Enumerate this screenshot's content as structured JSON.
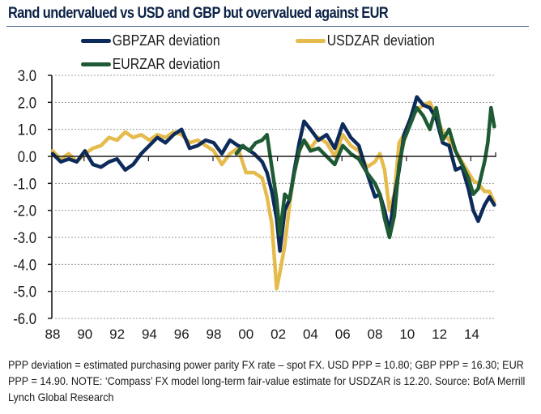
{
  "title": "Rand undervalued vs USD and GBP but overvalued against EUR",
  "footnote": "PPP deviation = estimated purchasing power parity FX rate – spot FX. USD PPP = 10.80; GBP PPP = 16.30; EUR PPP = 14.90. NOTE: ‘Compass’ FX model long-term fair-value estimate for USDZAR is 12.20. Source: BofA Merrill Lynch Global Research",
  "colors": {
    "gbp": "#0d2b5a",
    "usd": "#e6bb4d",
    "eur": "#1e5a34",
    "title": "#0b2246"
  },
  "chart_data": {
    "type": "line",
    "title": "Rand undervalued vs USD and GBP but overvalued against EUR",
    "xlabel": "",
    "ylabel": "",
    "ylim": [
      -6.0,
      3.0
    ],
    "xlim": [
      1988,
      2015.6
    ],
    "yticks": [
      "3.0",
      "2.0",
      "1.0",
      "0.0",
      "-1.0",
      "-2.0",
      "-3.0",
      "-4.0",
      "-5.0",
      "-6.0"
    ],
    "ytick_values": [
      3,
      2,
      1,
      0,
      -1,
      -2,
      -3,
      -4,
      -5,
      -6
    ],
    "xticks": [
      "88",
      "90",
      "92",
      "94",
      "96",
      "98",
      "00",
      "02",
      "04",
      "06",
      "08",
      "10",
      "12",
      "14"
    ],
    "xtick_values": [
      1988,
      1990,
      1992,
      1994,
      1996,
      1998,
      2000,
      2002,
      2004,
      2006,
      2008,
      2010,
      2012,
      2014
    ],
    "grid": true,
    "legend": "top",
    "series": [
      {
        "name": "GBPZAR deviation",
        "key": "gbp",
        "x": [
          1988,
          1988.5,
          1989,
          1989.5,
          1990,
          1990.5,
          1991,
          1991.5,
          1992,
          1992.5,
          1993,
          1993.5,
          1994,
          1994.5,
          1995,
          1995.5,
          1996,
          1996.5,
          1997,
          1997.5,
          1998,
          1998.5,
          1999,
          1999.5,
          2000,
          2000.5,
          2001,
          2001.3,
          2001.6,
          2001.9,
          2002.1,
          2002.4,
          2002.7,
          2003,
          2003.3,
          2003.6,
          2004,
          2004.5,
          2005,
          2005.5,
          2006,
          2006.5,
          2007,
          2007.5,
          2008,
          2008.3,
          2008.6,
          2008.9,
          2009.2,
          2009.5,
          2009.8,
          2010.2,
          2010.6,
          2011,
          2011.4,
          2011.8,
          2012.2,
          2012.6,
          2013,
          2013.4,
          2013.8,
          2014.1,
          2014.4,
          2014.8,
          2015.1,
          2015.4
        ],
        "y": [
          0.1,
          -0.2,
          -0.1,
          -0.2,
          0.2,
          -0.3,
          -0.4,
          -0.2,
          -0.1,
          -0.5,
          -0.3,
          0.1,
          0.4,
          0.7,
          0.5,
          0.8,
          1.0,
          0.3,
          0.4,
          0.6,
          0.5,
          0.1,
          0.6,
          0.4,
          0.3,
          0.1,
          -0.2,
          -0.6,
          -1.3,
          -2.3,
          -3.5,
          -2.0,
          -1.6,
          -0.5,
          0.5,
          1.3,
          1.0,
          0.6,
          0.8,
          0.3,
          1.2,
          0.7,
          0.4,
          -0.6,
          -1.5,
          -1.4,
          -2.0,
          -2.8,
          -1.5,
          -0.5,
          0.8,
          1.4,
          2.2,
          1.9,
          1.8,
          1.4,
          0.5,
          0.4,
          -0.5,
          -0.4,
          -1.2,
          -2.0,
          -2.4,
          -1.8,
          -1.5,
          -1.8
        ]
      },
      {
        "name": "USDZAR deviation",
        "key": "usd",
        "x": [
          1988,
          1988.5,
          1989,
          1989.5,
          1990,
          1990.5,
          1991,
          1991.5,
          1992,
          1992.5,
          1993,
          1993.5,
          1994,
          1994.5,
          1995,
          1995.5,
          1996,
          1996.5,
          1997,
          1997.5,
          1998,
          1998.5,
          1999,
          1999.5,
          2000,
          2000.5,
          2001,
          2001.3,
          2001.6,
          2001.9,
          2002.1,
          2002.4,
          2002.7,
          2003,
          2003.3,
          2003.6,
          2004,
          2004.5,
          2005,
          2005.5,
          2006,
          2006.5,
          2007,
          2007.5,
          2008,
          2008.3,
          2008.6,
          2008.9,
          2009.2,
          2009.5,
          2009.8,
          2010.2,
          2010.6,
          2011,
          2011.4,
          2011.8,
          2012.2,
          2012.6,
          2013,
          2013.4,
          2013.8,
          2014.1,
          2014.4,
          2014.8,
          2015.1,
          2015.4
        ],
        "y": [
          0.2,
          -0.1,
          0.1,
          -0.2,
          0.1,
          0.3,
          0.4,
          0.7,
          0.6,
          0.9,
          0.7,
          0.8,
          0.6,
          0.8,
          0.7,
          0.9,
          0.8,
          0.5,
          0.6,
          0.4,
          0.2,
          -0.3,
          0.1,
          0.3,
          -0.6,
          -0.6,
          -0.8,
          -1.5,
          -2.5,
          -4.9,
          -4.3,
          -3.3,
          -1.8,
          -0.5,
          0.2,
          0.6,
          0.3,
          0.7,
          0.5,
          0.0,
          0.8,
          0.4,
          0.2,
          -0.4,
          -0.2,
          0.1,
          -0.5,
          -2.0,
          -1.4,
          0.5,
          0.8,
          1.4,
          1.7,
          1.9,
          2.0,
          1.5,
          0.9,
          0.6,
          0.2,
          -0.2,
          -0.6,
          -0.9,
          -1.0,
          -1.3,
          -1.3,
          -1.7
        ]
      },
      {
        "name": "EURZAR deviation",
        "key": "eur",
        "x": [
          1999.4,
          1999.8,
          2000.2,
          2000.6,
          2001,
          2001.3,
          2001.6,
          2001.9,
          2002.1,
          2002.4,
          2002.7,
          2003,
          2003.3,
          2003.6,
          2004,
          2004.5,
          2005,
          2005.5,
          2006,
          2006.5,
          2007,
          2007.5,
          2008,
          2008.3,
          2008.6,
          2008.9,
          2009.2,
          2009.5,
          2009.8,
          2010.2,
          2010.6,
          2011,
          2011.4,
          2011.8,
          2012.2,
          2012.6,
          2013,
          2013.4,
          2013.8,
          2014.1,
          2014.4,
          2014.8,
          2015.0,
          2015.2,
          2015.4
        ],
        "y": [
          0.1,
          0.4,
          0.2,
          0.5,
          0.6,
          0.8,
          -0.4,
          -1.6,
          -2.9,
          -1.4,
          -1.6,
          -0.6,
          0.2,
          0.6,
          0.2,
          0.3,
          0.0,
          -0.3,
          0.4,
          0.1,
          -0.1,
          -0.6,
          -1.0,
          -1.4,
          -2.3,
          -3.0,
          -2.2,
          -0.3,
          0.6,
          1.2,
          1.8,
          1.5,
          1.0,
          1.8,
          0.6,
          1.0,
          0.2,
          -0.3,
          -0.8,
          -1.4,
          -1.2,
          -0.2,
          0.5,
          1.8,
          1.1
        ]
      }
    ]
  }
}
